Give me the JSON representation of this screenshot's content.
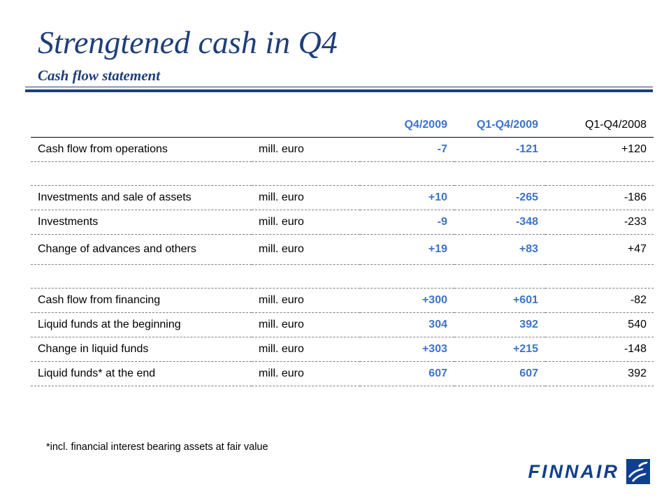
{
  "header": {
    "title": "Strengtened cash in Q4",
    "subtitle": "Cash flow statement"
  },
  "table": {
    "columns": [
      "",
      "",
      "Q4/2009",
      "Q1-Q4/2009",
      "Q1-Q4/2008"
    ],
    "rows": [
      {
        "label": "Cash flow from operations",
        "unit": "mill. euro",
        "q4_2009": "-7",
        "q1q4_2009": "-121",
        "q1q4_2008": "+120"
      },
      {
        "label": "",
        "unit": "",
        "q4_2009": "",
        "q1q4_2009": "",
        "q1q4_2008": ""
      },
      {
        "label": "Investments and sale of assets",
        "unit": "mill. euro",
        "q4_2009": "+10",
        "q1q4_2009": "-265",
        "q1q4_2008": "-186"
      },
      {
        "label": "Investments",
        "unit": "mill. euro",
        "q4_2009": "-9",
        "q1q4_2009": "-348",
        "q1q4_2008": "-233"
      },
      {
        "label": "Change of advances and others",
        "unit": "mill. euro",
        "q4_2009": "+19",
        "q1q4_2009": "+83",
        "q1q4_2008": "+47"
      },
      {
        "label": "",
        "unit": "",
        "q4_2009": "",
        "q1q4_2009": "",
        "q1q4_2008": ""
      },
      {
        "label": "Cash flow from financing",
        "unit": "mill. euro",
        "q4_2009": "+300",
        "q1q4_2009": "+601",
        "q1q4_2008": "-82"
      },
      {
        "label": "Liquid funds at the beginning",
        "unit": "mill. euro",
        "q4_2009": "304",
        "q1q4_2009": "392",
        "q1q4_2008": "540"
      },
      {
        "label": "Change in liquid funds",
        "unit": "mill. euro",
        "q4_2009": "+303",
        "q1q4_2009": "+215",
        "q1q4_2008": "-148"
      },
      {
        "label": "Liquid funds* at the end",
        "unit": "mill. euro",
        "q4_2009": "607",
        "q1q4_2009": "607",
        "q1q4_2008": "392"
      }
    ]
  },
  "footnote": "*incl. financial interest bearing assets at fair value",
  "logo": {
    "wordmark": "FINNAIR",
    "icon": "finnair-flag-icon"
  },
  "colors": {
    "title": "#1f3e7a",
    "highlight": "#3b73c9",
    "logo": "#0f3f91"
  }
}
